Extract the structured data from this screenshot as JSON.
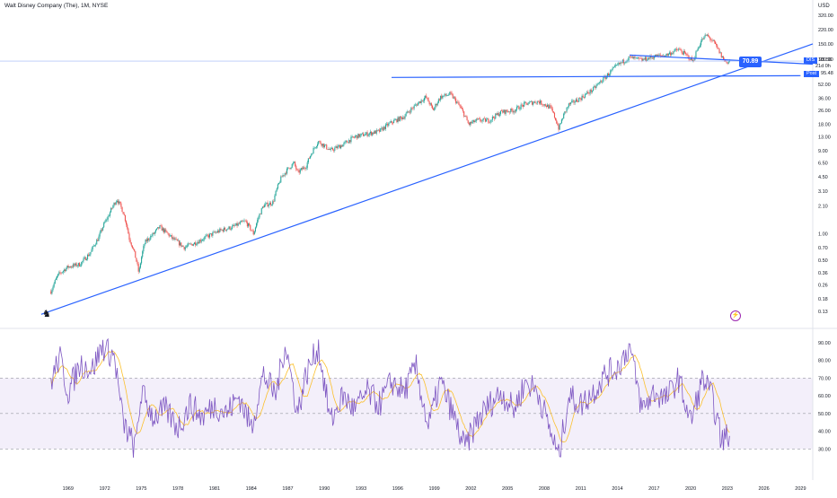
{
  "header": {
    "title": "Walt Disney Company (The), 1M, NYSE",
    "currency": "USD"
  },
  "price_badges": [
    {
      "key": "DIS",
      "value": "95.56"
    },
    {
      "key": "",
      "value": "21d 0h"
    },
    {
      "key": "Post",
      "value": "95.48"
    }
  ],
  "callout": "70.89",
  "colors": {
    "up": "#26a69a",
    "down": "#ef5350",
    "trendline": "#2962ff",
    "rsi": "#7e57c2",
    "rsi_ma": "#fbc02d",
    "rsi_band": "#f3effa"
  },
  "chart_data": [
    {
      "type": "candlestick",
      "scale": "log",
      "ylim": [
        0.11,
        360
      ],
      "xlim": [
        1966,
        2030
      ],
      "y_ticks": [
        "320.00",
        "220.00",
        "150.00",
        "100.00",
        "52.00",
        "36.00",
        "26.00",
        "18.00",
        "13.00",
        "9.00",
        "6.50",
        "4.50",
        "3.10",
        "2.10",
        "1.00",
        "0.70",
        "0.50",
        "0.36",
        "0.26",
        "0.18",
        "0.13"
      ],
      "x_ticks": [
        "1969",
        "1972",
        "1975",
        "1978",
        "1981",
        "1984",
        "1987",
        "1990",
        "1993",
        "1996",
        "1999",
        "2002",
        "2005",
        "2008",
        "2011",
        "2014",
        "2017",
        "2020",
        "2023",
        "2026",
        "2029"
      ],
      "price_path": [
        [
          1967.6,
          0.22
        ],
        [
          1968.2,
          0.34
        ],
        [
          1969.0,
          0.42
        ],
        [
          1970.0,
          0.45
        ],
        [
          1970.8,
          0.6
        ],
        [
          1971.5,
          0.9
        ],
        [
          1972.3,
          1.6
        ],
        [
          1973.0,
          2.5
        ],
        [
          1973.5,
          1.8
        ],
        [
          1974.0,
          0.9
        ],
        [
          1974.8,
          0.35
        ],
        [
          1975.3,
          0.8
        ],
        [
          1976.0,
          1.0
        ],
        [
          1976.5,
          1.2
        ],
        [
          1977.5,
          0.9
        ],
        [
          1978.5,
          0.7
        ],
        [
          1979.5,
          0.8
        ],
        [
          1980.5,
          0.95
        ],
        [
          1981.5,
          1.1
        ],
        [
          1982.5,
          1.2
        ],
        [
          1983.5,
          1.4
        ],
        [
          1984.2,
          1.0
        ],
        [
          1985.0,
          2.1
        ],
        [
          1985.8,
          2.3
        ],
        [
          1986.5,
          4.5
        ],
        [
          1987.5,
          6.5
        ],
        [
          1987.8,
          5.0
        ],
        [
          1988.5,
          6.0
        ],
        [
          1989.5,
          11.5
        ],
        [
          1990.5,
          9.0
        ],
        [
          1991.5,
          10.5
        ],
        [
          1992.5,
          13.0
        ],
        [
          1993.5,
          14.0
        ],
        [
          1994.5,
          15.0
        ],
        [
          1995.5,
          19.0
        ],
        [
          1996.5,
          22.0
        ],
        [
          1997.5,
          30.0
        ],
        [
          1998.3,
          37.0
        ],
        [
          1998.9,
          26.0
        ],
        [
          1999.5,
          37.0
        ],
        [
          2000.3,
          40.0
        ],
        [
          2001.0,
          30.0
        ],
        [
          2001.8,
          18.0
        ],
        [
          2002.5,
          20.0
        ],
        [
          2003.5,
          20.0
        ],
        [
          2004.5,
          25.0
        ],
        [
          2005.5,
          26.0
        ],
        [
          2006.5,
          31.0
        ],
        [
          2007.5,
          33.0
        ],
        [
          2008.5,
          28.0
        ],
        [
          2009.2,
          16.0
        ],
        [
          2010.0,
          30.0
        ],
        [
          2011.0,
          36.0
        ],
        [
          2012.0,
          45.0
        ],
        [
          2013.0,
          62.0
        ],
        [
          2014.0,
          85.0
        ],
        [
          2015.0,
          105.0
        ],
        [
          2016.0,
          98.0
        ],
        [
          2017.0,
          108.0
        ],
        [
          2018.0,
          112.0
        ],
        [
          2019.0,
          130.0
        ],
        [
          2020.2,
          95.0
        ],
        [
          2020.9,
          165.0
        ],
        [
          2021.3,
          190.0
        ],
        [
          2021.9,
          155.0
        ],
        [
          2022.5,
          110.0
        ],
        [
          2022.9,
          92.0
        ],
        [
          2023.2,
          95.56
        ]
      ],
      "trendlines": [
        {
          "from": [
            1966.8,
            0.12
          ],
          "to": [
            2030.0,
            150
          ]
        },
        {
          "from": [
            1995.5,
            62
          ],
          "to": [
            2029.0,
            65
          ]
        },
        {
          "from": [
            2015.0,
            112
          ],
          "to": [
            2030.0,
            88
          ]
        }
      ]
    },
    {
      "type": "line",
      "name": "RSI",
      "ylim": [
        20,
        95
      ],
      "band": [
        30,
        70
      ],
      "midline": 50,
      "y_ticks": [
        "90.00",
        "80.00",
        "70.00",
        "60.00",
        "50.00",
        "40.00",
        "30.00"
      ],
      "rsi_path": [
        [
          1967.6,
          68
        ],
        [
          1968.3,
          82
        ],
        [
          1969.0,
          62
        ],
        [
          1970.0,
          78
        ],
        [
          1971.0,
          75
        ],
        [
          1971.8,
          88
        ],
        [
          1972.8,
          82
        ],
        [
          1973.5,
          45
        ],
        [
          1974.5,
          30
        ],
        [
          1975.0,
          62
        ],
        [
          1976.0,
          48
        ],
        [
          1977.0,
          52
        ],
        [
          1978.0,
          42
        ],
        [
          1979.0,
          55
        ],
        [
          1980.0,
          48
        ],
        [
          1981.0,
          55
        ],
        [
          1982.0,
          50
        ],
        [
          1983.0,
          60
        ],
        [
          1984.0,
          42
        ],
        [
          1985.0,
          72
        ],
        [
          1986.0,
          60
        ],
        [
          1986.8,
          90
        ],
        [
          1987.8,
          50
        ],
        [
          1988.5,
          72
        ],
        [
          1989.5,
          88
        ],
        [
          1990.5,
          45
        ],
        [
          1991.5,
          60
        ],
        [
          1992.5,
          52
        ],
        [
          1993.5,
          62
        ],
        [
          1994.5,
          55
        ],
        [
          1995.5,
          68
        ],
        [
          1996.5,
          62
        ],
        [
          1997.5,
          76
        ],
        [
          1998.5,
          42
        ],
        [
          1999.5,
          68
        ],
        [
          2000.5,
          50
        ],
        [
          2001.5,
          30
        ],
        [
          2002.5,
          46
        ],
        [
          2003.5,
          55
        ],
        [
          2004.5,
          62
        ],
        [
          2005.5,
          52
        ],
        [
          2006.5,
          68
        ],
        [
          2007.5,
          62
        ],
        [
          2008.5,
          40
        ],
        [
          2009.2,
          25
        ],
        [
          2010.0,
          60
        ],
        [
          2011.0,
          55
        ],
        [
          2012.0,
          62
        ],
        [
          2013.0,
          72
        ],
        [
          2014.0,
          76
        ],
        [
          2015.0,
          88
        ],
        [
          2016.0,
          52
        ],
        [
          2017.0,
          62
        ],
        [
          2018.0,
          58
        ],
        [
          2019.0,
          70
        ],
        [
          2020.0,
          45
        ],
        [
          2021.0,
          70
        ],
        [
          2021.8,
          58
        ],
        [
          2022.5,
          35
        ],
        [
          2023.2,
          38
        ]
      ]
    }
  ]
}
